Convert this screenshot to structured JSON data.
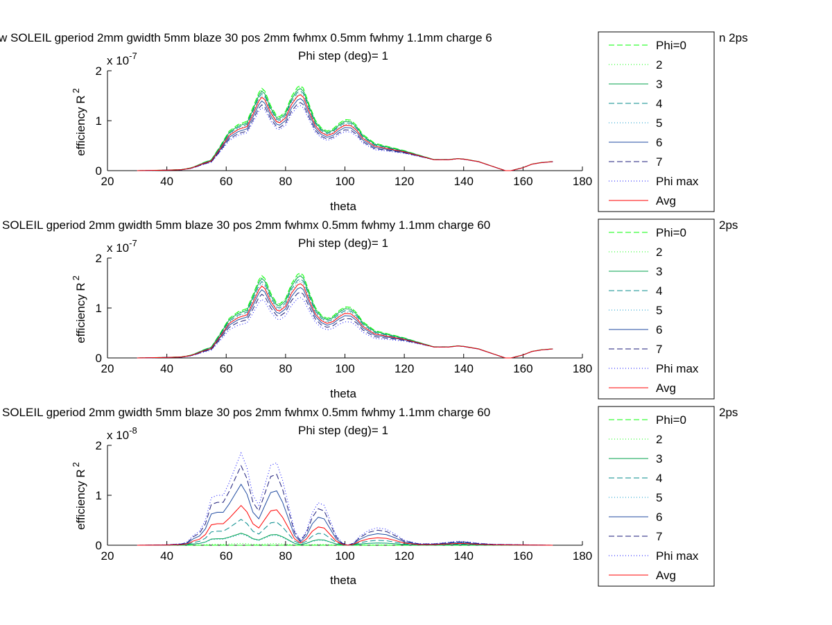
{
  "chart_data": [
    {
      "type": "line",
      "title": "w SOLEIL gperiod 2mm gwidth 5mm blaze 30 pos 2mm fwhmx 0.5mm fwhmy 1.1mm charge 6",
      "title_tail": "n 2ps",
      "subtitle": "Phi step (deg)= 1",
      "xlabel": "theta",
      "ylabel": "efficiency R",
      "ylabel_sup": "2",
      "exponent": "x 10",
      "exponent_power": "-7",
      "scale": 1e-07,
      "xlim": [
        20,
        180
      ],
      "ylim": [
        0,
        2
      ],
      "xticks": [
        20,
        40,
        60,
        80,
        100,
        120,
        140,
        160,
        180
      ],
      "yticks": [
        0,
        1,
        2
      ],
      "grid": false,
      "legend_position": "right",
      "x": [
        30,
        40,
        45,
        48,
        50,
        52,
        55,
        58,
        61,
        64,
        67,
        69,
        71,
        72,
        73,
        75,
        77,
        78,
        80,
        82,
        84,
        85,
        86,
        88,
        90,
        92,
        94,
        96,
        98,
        100,
        102,
        104,
        106,
        110,
        115,
        120,
        125,
        130,
        135,
        138,
        140,
        145,
        150,
        154,
        156,
        160,
        163,
        166,
        170
      ],
      "base": [
        0,
        0.01,
        0.02,
        0.05,
        0.09,
        0.14,
        0.2,
        0.45,
        0.72,
        0.84,
        0.9,
        1.15,
        1.42,
        1.5,
        1.45,
        1.18,
        1.0,
        0.98,
        1.08,
        1.35,
        1.52,
        1.55,
        1.5,
        1.2,
        0.92,
        0.78,
        0.72,
        0.76,
        0.86,
        0.93,
        0.92,
        0.82,
        0.66,
        0.5,
        0.44,
        0.38,
        0.3,
        0.22,
        0.22,
        0.24,
        0.23,
        0.18,
        0.08,
        0.0,
        0.0,
        0.06,
        0.13,
        0.16,
        0.18
      ],
      "series": [
        {
          "name": "Phi=0",
          "factor": 1.1,
          "tail_factor": 0.1
        },
        {
          "name": "2",
          "factor": 1.08,
          "tail_factor": 0.08
        },
        {
          "name": "3",
          "factor": 1.06,
          "tail_factor": 0.06
        },
        {
          "name": "4",
          "factor": 1.03,
          "tail_factor": 0.04
        },
        {
          "name": "5",
          "factor": 1.0,
          "tail_factor": 0.02
        },
        {
          "name": "6",
          "factor": 0.93,
          "tail_factor": -0.03
        },
        {
          "name": "7",
          "factor": 0.88,
          "tail_factor": -0.05
        },
        {
          "name": "Phi max",
          "factor": 0.84,
          "tail_factor": -0.08
        },
        {
          "name": "Avg",
          "factor": 0.98,
          "tail_factor": 0.0
        }
      ]
    },
    {
      "type": "line",
      "title": "SOLEIL gperiod 2mm gwidth 5mm blaze 30 pos 2mm fwhmx 0.5mm fwhmy 1.1mm charge 60",
      "title_tail": "2ps",
      "subtitle": "Phi step (deg)= 1",
      "xlabel": "theta",
      "ylabel": "efficiency R",
      "ylabel_sup": "2",
      "exponent": "x 10",
      "exponent_power": "-7",
      "scale": 1e-07,
      "xlim": [
        20,
        180
      ],
      "ylim": [
        0,
        2
      ],
      "xticks": [
        20,
        40,
        60,
        80,
        100,
        120,
        140,
        160,
        180
      ],
      "yticks": [
        0,
        1,
        2
      ],
      "grid": false,
      "legend_position": "right",
      "x": [
        30,
        40,
        45,
        48,
        50,
        52,
        55,
        58,
        61,
        64,
        67,
        69,
        71,
        72,
        73,
        75,
        77,
        78,
        80,
        82,
        84,
        85,
        86,
        88,
        90,
        92,
        94,
        96,
        98,
        100,
        102,
        104,
        106,
        110,
        115,
        120,
        125,
        130,
        135,
        138,
        140,
        145,
        150,
        154,
        156,
        160,
        163,
        166,
        170
      ],
      "base": [
        0,
        0.01,
        0.02,
        0.05,
        0.09,
        0.14,
        0.2,
        0.45,
        0.72,
        0.84,
        0.9,
        1.15,
        1.42,
        1.5,
        1.45,
        1.18,
        1.0,
        0.98,
        1.08,
        1.35,
        1.52,
        1.55,
        1.5,
        1.2,
        0.92,
        0.78,
        0.72,
        0.76,
        0.86,
        0.93,
        0.92,
        0.82,
        0.66,
        0.5,
        0.44,
        0.38,
        0.3,
        0.22,
        0.22,
        0.24,
        0.23,
        0.18,
        0.08,
        0.0,
        0.0,
        0.06,
        0.13,
        0.16,
        0.18
      ],
      "series": [
        {
          "name": "Phi=0",
          "factor": 1.1,
          "tail_factor": 0.1
        },
        {
          "name": "2",
          "factor": 1.08,
          "tail_factor": 0.08
        },
        {
          "name": "3",
          "factor": 1.06,
          "tail_factor": 0.06
        },
        {
          "name": "4",
          "factor": 1.02,
          "tail_factor": 0.04
        },
        {
          "name": "5",
          "factor": 0.99,
          "tail_factor": 0.02
        },
        {
          "name": "6",
          "factor": 0.91,
          "tail_factor": -0.03
        },
        {
          "name": "7",
          "factor": 0.85,
          "tail_factor": -0.05
        },
        {
          "name": "Phi max",
          "factor": 0.78,
          "tail_factor": -0.08
        },
        {
          "name": "Avg",
          "factor": 0.96,
          "tail_factor": 0.0
        }
      ]
    },
    {
      "type": "line",
      "title": "SOLEIL gperiod 2mm gwidth 5mm blaze 30 pos 2mm fwhmx 0.5mm fwhmy 1.1mm charge 60",
      "title_tail": "2ps",
      "subtitle": "Phi step (deg)= 1",
      "xlabel": "theta",
      "ylabel": "efficiency R",
      "ylabel_sup": "2",
      "exponent": "x 10",
      "exponent_power": "-8",
      "scale": 1e-08,
      "xlim": [
        20,
        180
      ],
      "ylim": [
        0,
        2
      ],
      "xticks": [
        20,
        40,
        60,
        80,
        100,
        120,
        140,
        160,
        180
      ],
      "yticks": [
        0,
        1,
        2
      ],
      "grid": false,
      "legend_position": "right",
      "x": [
        30,
        40,
        45,
        47,
        49,
        51,
        53,
        55,
        57,
        59,
        61,
        63,
        65,
        67,
        69,
        71,
        73,
        75,
        77,
        79,
        81,
        83,
        85,
        87,
        89,
        91,
        93,
        95,
        97,
        99,
        101,
        103,
        105,
        108,
        111,
        114,
        117,
        120,
        125,
        130,
        135,
        138,
        141,
        145,
        150,
        160,
        170
      ],
      "base": [
        0,
        0.01,
        0.03,
        0.07,
        0.2,
        0.28,
        0.5,
        0.95,
        1.0,
        1.0,
        1.25,
        1.55,
        1.85,
        1.55,
        1.0,
        0.8,
        1.2,
        1.6,
        1.65,
        1.3,
        0.8,
        0.3,
        0.1,
        0.28,
        0.65,
        0.85,
        0.8,
        0.5,
        0.2,
        0.05,
        0.0,
        0.05,
        0.18,
        0.3,
        0.35,
        0.32,
        0.22,
        0.1,
        0.03,
        0.03,
        0.06,
        0.08,
        0.07,
        0.04,
        0.02,
        0.01,
        0.0
      ],
      "series": [
        {
          "name": "Phi=0",
          "factor": 0.0,
          "tail_factor": 0.0
        },
        {
          "name": "2",
          "factor": 0.02,
          "tail_factor": 0.0
        },
        {
          "name": "3",
          "factor": 0.13,
          "tail_factor": 0.0
        },
        {
          "name": "4",
          "factor": 0.28,
          "tail_factor": 0.0
        },
        {
          "name": "5",
          "factor": 0.12,
          "tail_factor": 0.0
        },
        {
          "name": "6",
          "factor": 0.66,
          "tail_factor": 0.0
        },
        {
          "name": "7",
          "factor": 0.86,
          "tail_factor": 0.0
        },
        {
          "name": "Phi max",
          "factor": 1.0,
          "tail_factor": 0.0
        },
        {
          "name": "Avg",
          "factor": 0.43,
          "tail_factor": 0.0
        }
      ]
    }
  ],
  "styles": [
    {
      "name": "Phi=0",
      "color": "#00ff00",
      "dash": "8,4"
    },
    {
      "name": "2",
      "color": "#00ff00",
      "dash": "1,3"
    },
    {
      "name": "3",
      "color": "#00a24b",
      "dash": ""
    },
    {
      "name": "4",
      "color": "#008a8a",
      "dash": "8,4"
    },
    {
      "name": "5",
      "color": "#0096c8",
      "dash": "1,3"
    },
    {
      "name": "6",
      "color": "#1f4aa0",
      "dash": ""
    },
    {
      "name": "7",
      "color": "#1a1a78",
      "dash": "8,4"
    },
    {
      "name": "Phi max",
      "color": "#0000ff",
      "dash": "1,3"
    },
    {
      "name": "Avg",
      "color": "#ff0000",
      "dash": ""
    }
  ]
}
